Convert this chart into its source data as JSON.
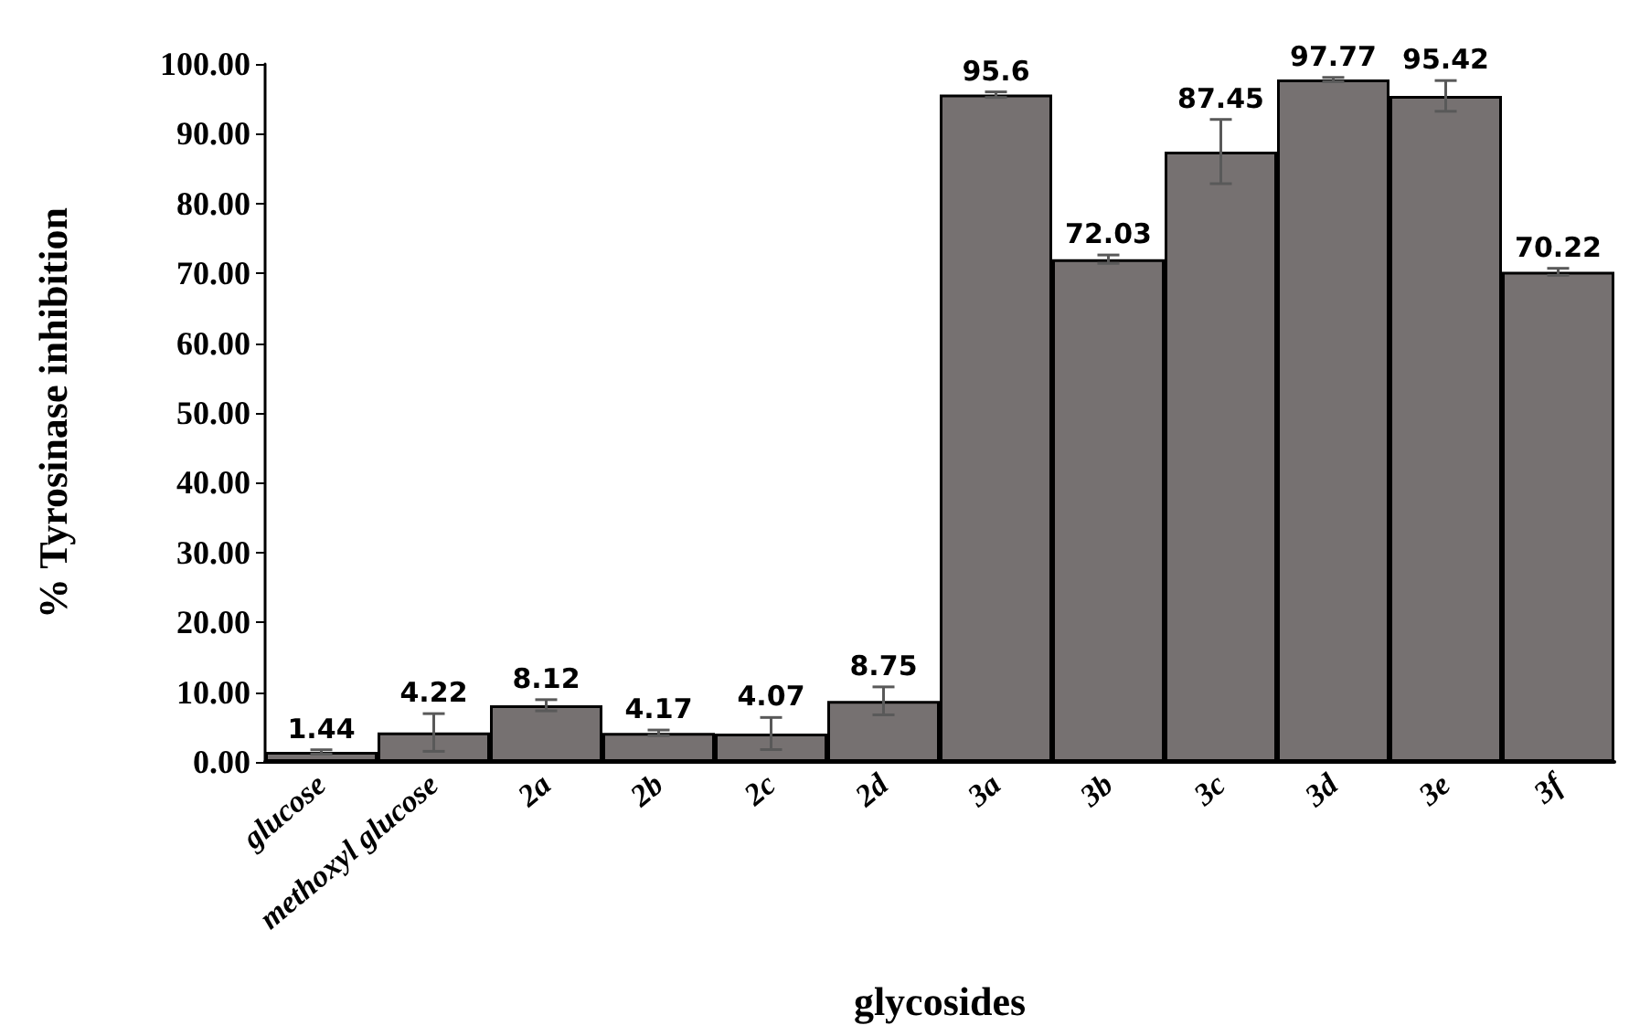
{
  "chart_data": {
    "type": "bar",
    "xlabel": "glycosides",
    "ylabel": "% Tyrosinase inhibition",
    "categories": [
      "glucose",
      "methoxyl glucose",
      "2a",
      "2b",
      "2c",
      "2d",
      "3a",
      "3b",
      "3c",
      "3d",
      "3e",
      "3f"
    ],
    "values": [
      1.44,
      4.22,
      8.12,
      4.17,
      4.07,
      8.75,
      95.6,
      72.03,
      87.45,
      97.77,
      95.42,
      70.22
    ],
    "errors": [
      0.3,
      2.7,
      0.8,
      0.4,
      2.3,
      2,
      0.4,
      0.6,
      4.6,
      0.3,
      2.2,
      0.5
    ],
    "color": "#767171",
    "data_labels": true,
    "grid": false,
    "ylim": [
      0,
      100
    ],
    "yticks": [
      {
        "value": 0,
        "label": "0.00"
      },
      {
        "value": 10,
        "label": "10.00"
      },
      {
        "value": 20,
        "label": "20.00"
      },
      {
        "value": 30,
        "label": "30.00"
      },
      {
        "value": 40,
        "label": "40.00"
      },
      {
        "value": 50,
        "label": "50.00"
      },
      {
        "value": 60,
        "label": "60.00"
      },
      {
        "value": 70,
        "label": "70.00"
      },
      {
        "value": 80,
        "label": "80.00"
      },
      {
        "value": 90,
        "label": "90.00"
      },
      {
        "value": 100,
        "label": "100.00"
      }
    ]
  }
}
